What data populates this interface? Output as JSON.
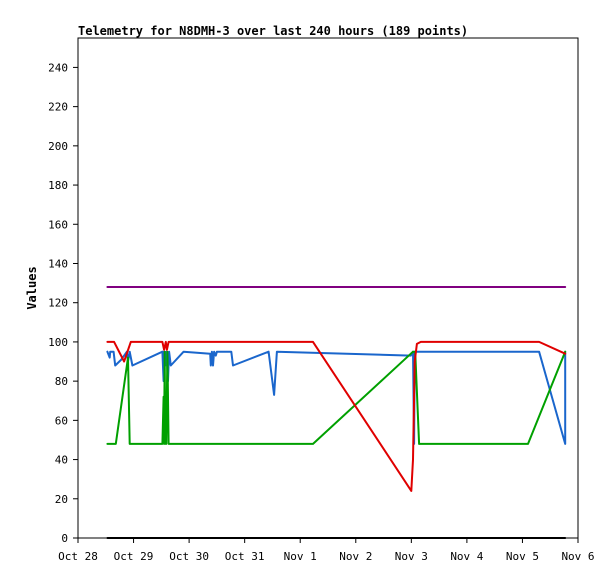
{
  "chart_data": {
    "type": "line",
    "title": "Telemetry for N8DMH-3 over last 240 hours (189 points)",
    "xlabel": "",
    "ylabel": "Values",
    "x_unit": "days",
    "xlim": [
      0,
      9
    ],
    "ylim": [
      0,
      255
    ],
    "x_ticks": [
      {
        "value": 0,
        "label": "Oct 28"
      },
      {
        "value": 1,
        "label": "Oct 29"
      },
      {
        "value": 2,
        "label": "Oct 30"
      },
      {
        "value": 3,
        "label": "Oct 31"
      },
      {
        "value": 4,
        "label": "Nov 1"
      },
      {
        "value": 5,
        "label": "Nov 2"
      },
      {
        "value": 6,
        "label": "Nov 3"
      },
      {
        "value": 7,
        "label": "Nov 4"
      },
      {
        "value": 8,
        "label": "Nov 5"
      },
      {
        "value": 9,
        "label": "Nov 6"
      }
    ],
    "y_ticks": [
      0,
      20,
      40,
      60,
      80,
      100,
      120,
      140,
      160,
      180,
      200,
      220,
      240
    ],
    "grid": false,
    "legend": "none",
    "series": [
      {
        "color": "#000000",
        "points": [
          [
            0.53,
            0
          ],
          [
            8.77,
            0
          ]
        ]
      },
      {
        "color": "#800080",
        "points": [
          [
            0.53,
            128
          ],
          [
            8.77,
            128
          ]
        ]
      },
      {
        "color": "#1a66cc",
        "points": [
          [
            0.53,
            95
          ],
          [
            0.57,
            92
          ],
          [
            0.58,
            95
          ],
          [
            0.64,
            95
          ],
          [
            0.67,
            88
          ],
          [
            0.78,
            91
          ],
          [
            0.88,
            95
          ],
          [
            0.9,
            90
          ],
          [
            0.93,
            95
          ],
          [
            0.98,
            88
          ],
          [
            1.52,
            95
          ],
          [
            1.54,
            80
          ],
          [
            1.55,
            95
          ],
          [
            1.57,
            88
          ],
          [
            1.59,
            95
          ],
          [
            1.62,
            80
          ],
          [
            1.64,
            95
          ],
          [
            1.67,
            88
          ],
          [
            1.9,
            95
          ],
          [
            2.38,
            94
          ],
          [
            2.39,
            88
          ],
          [
            2.41,
            95
          ],
          [
            2.43,
            88
          ],
          [
            2.45,
            95
          ],
          [
            2.48,
            93
          ],
          [
            2.5,
            95
          ],
          [
            2.76,
            95
          ],
          [
            2.79,
            88
          ],
          [
            3.43,
            95
          ],
          [
            3.53,
            73
          ],
          [
            3.58,
            95
          ],
          [
            5.99,
            93
          ],
          [
            6.03,
            95
          ],
          [
            6.05,
            48
          ],
          [
            6.06,
            95
          ],
          [
            8.3,
            95
          ],
          [
            8.77,
            48
          ],
          [
            8.77,
            95
          ]
        ]
      },
      {
        "color": "#00a000",
        "points": [
          [
            0.53,
            48
          ],
          [
            0.68,
            48
          ],
          [
            0.9,
            92
          ],
          [
            0.93,
            48
          ],
          [
            1.52,
            48
          ],
          [
            1.54,
            72
          ],
          [
            1.55,
            48
          ],
          [
            1.56,
            95
          ],
          [
            1.57,
            48
          ],
          [
            1.58,
            72
          ],
          [
            1.59,
            48
          ],
          [
            1.61,
            95
          ],
          [
            1.63,
            48
          ],
          [
            4.23,
            48
          ],
          [
            6.03,
            95
          ],
          [
            6.07,
            95
          ],
          [
            6.14,
            48
          ],
          [
            8.1,
            48
          ],
          [
            8.77,
            95
          ]
        ]
      },
      {
        "color": "#e00000",
        "points": [
          [
            0.53,
            100
          ],
          [
            0.65,
            100
          ],
          [
            0.83,
            90
          ],
          [
            0.95,
            100
          ],
          [
            1.52,
            100
          ],
          [
            1.55,
            96
          ],
          [
            1.58,
            100
          ],
          [
            1.6,
            96
          ],
          [
            1.63,
            100
          ],
          [
            4.23,
            100
          ],
          [
            6.0,
            24
          ],
          [
            6.03,
            40
          ],
          [
            6.06,
            90
          ],
          [
            6.1,
            99
          ],
          [
            6.17,
            100
          ],
          [
            8.3,
            100
          ],
          [
            8.77,
            94
          ]
        ]
      }
    ]
  }
}
